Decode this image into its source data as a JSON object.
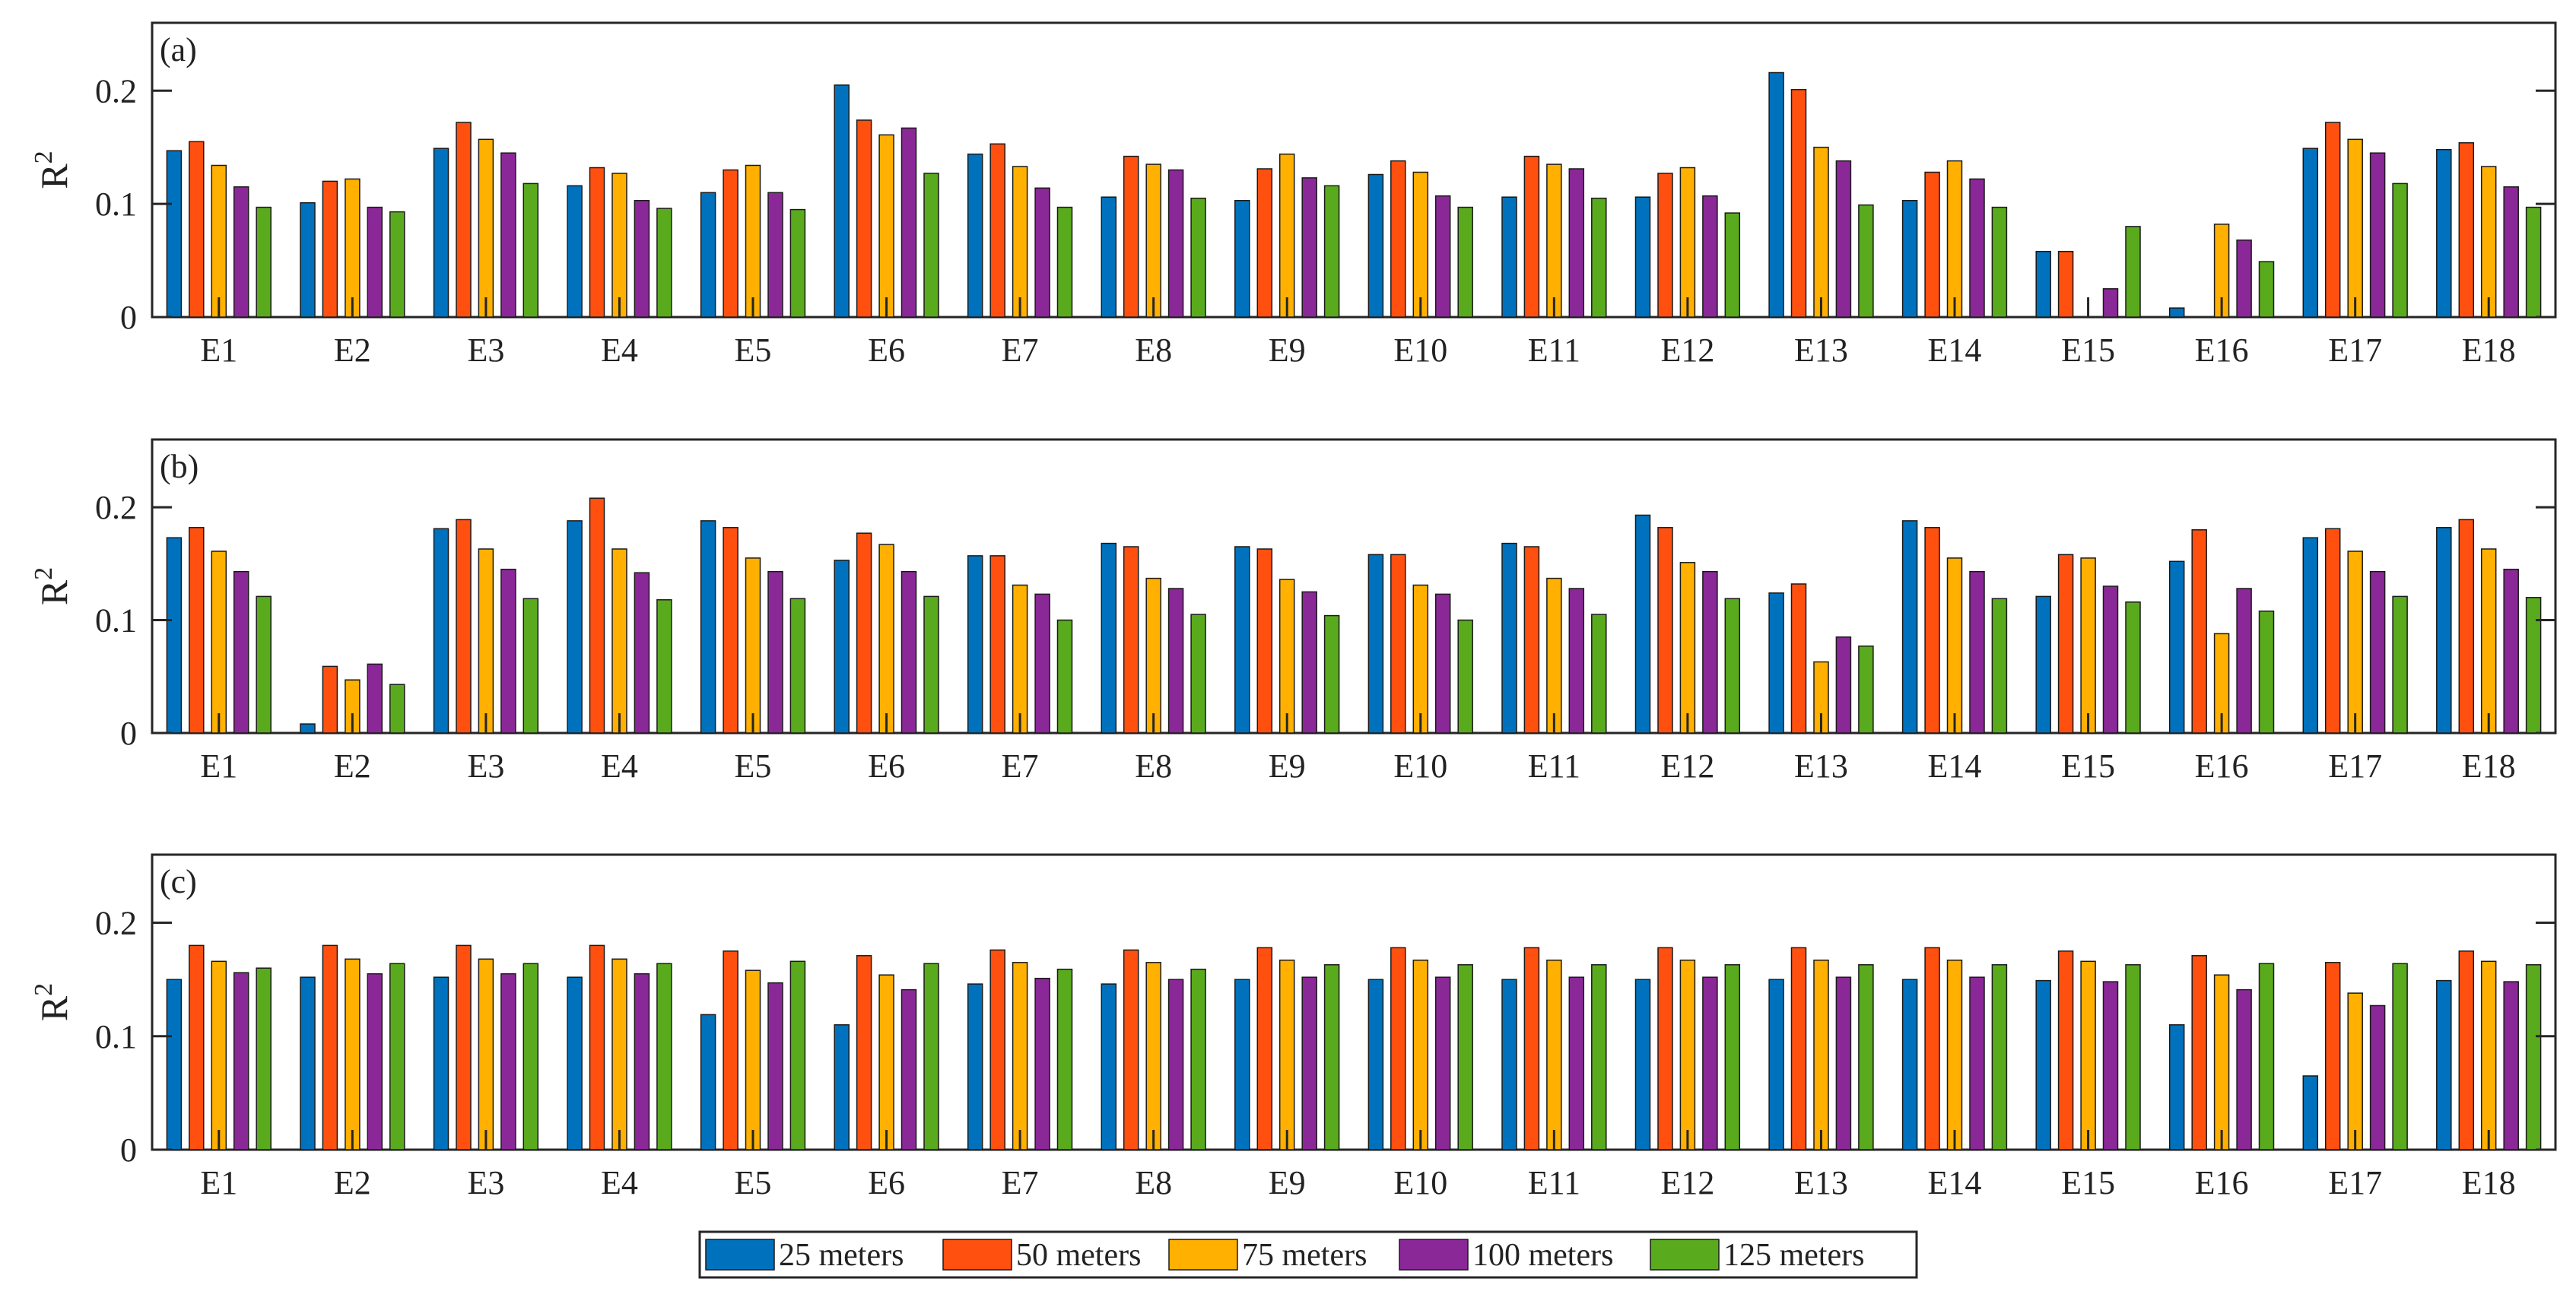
{
  "chart_data": [
    {
      "type": "bar",
      "panel_label": "(a)",
      "ylabel": "R",
      "ylabel_sup": "2",
      "ylim": [
        0,
        0.26
      ],
      "yticks": [
        0,
        0.1,
        0.2
      ],
      "ytick_labels": [
        "0",
        "0.1",
        "0.2"
      ],
      "categories": [
        "E1",
        "E2",
        "E3",
        "E4",
        "E5",
        "E6",
        "E7",
        "E8",
        "E9",
        "E10",
        "E11",
        "E12",
        "E13",
        "E14",
        "E15",
        "E16",
        "E17",
        "E18"
      ],
      "series": [
        {
          "name": "25 meters",
          "values": [
            0.147,
            0.101,
            0.149,
            0.116,
            0.11,
            0.205,
            0.144,
            0.106,
            0.103,
            0.126,
            0.106,
            0.106,
            0.216,
            0.103,
            0.058,
            0.008,
            0.149,
            0.148
          ]
        },
        {
          "name": "50 meters",
          "values": [
            0.155,
            0.12,
            0.172,
            0.132,
            0.13,
            0.174,
            0.153,
            0.142,
            0.131,
            0.138,
            0.142,
            0.127,
            0.201,
            0.128,
            0.058,
            0.0,
            0.172,
            0.154
          ]
        },
        {
          "name": "75 meters",
          "values": [
            0.134,
            0.122,
            0.157,
            0.127,
            0.134,
            0.161,
            0.133,
            0.135,
            0.144,
            0.128,
            0.135,
            0.132,
            0.15,
            0.138,
            0.0,
            0.082,
            0.157,
            0.133
          ]
        },
        {
          "name": "100 meters",
          "values": [
            0.115,
            0.097,
            0.145,
            0.103,
            0.11,
            0.167,
            0.114,
            0.13,
            0.123,
            0.107,
            0.131,
            0.107,
            0.138,
            0.122,
            0.025,
            0.068,
            0.145,
            0.115
          ]
        },
        {
          "name": "125 meters",
          "values": [
            0.097,
            0.093,
            0.118,
            0.096,
            0.095,
            0.127,
            0.097,
            0.105,
            0.116,
            0.097,
            0.105,
            0.092,
            0.099,
            0.097,
            0.08,
            0.049,
            0.118,
            0.097
          ]
        }
      ]
    },
    {
      "type": "bar",
      "panel_label": "(b)",
      "ylabel": "R",
      "ylabel_sup": "2",
      "ylim": [
        0,
        0.26
      ],
      "yticks": [
        0,
        0.1,
        0.2
      ],
      "ytick_labels": [
        "0",
        "0.1",
        "0.2"
      ],
      "categories": [
        "E1",
        "E2",
        "E3",
        "E4",
        "E5",
        "E6",
        "E7",
        "E8",
        "E9",
        "E10",
        "E11",
        "E12",
        "E13",
        "E14",
        "E15",
        "E16",
        "E17",
        "E18"
      ],
      "series": [
        {
          "name": "25 meters",
          "values": [
            0.173,
            0.008,
            0.181,
            0.188,
            0.188,
            0.153,
            0.157,
            0.168,
            0.165,
            0.158,
            0.168,
            0.193,
            0.124,
            0.188,
            0.121,
            0.152,
            0.173,
            0.182
          ]
        },
        {
          "name": "50 meters",
          "values": [
            0.182,
            0.059,
            0.189,
            0.208,
            0.182,
            0.177,
            0.157,
            0.165,
            0.163,
            0.158,
            0.165,
            0.182,
            0.132,
            0.182,
            0.158,
            0.18,
            0.181,
            0.189
          ]
        },
        {
          "name": "75 meters",
          "values": [
            0.161,
            0.047,
            0.163,
            0.163,
            0.155,
            0.167,
            0.131,
            0.137,
            0.136,
            0.131,
            0.137,
            0.151,
            0.063,
            0.155,
            0.155,
            0.088,
            0.161,
            0.163
          ]
        },
        {
          "name": "100 meters",
          "values": [
            0.143,
            0.061,
            0.145,
            0.142,
            0.143,
            0.143,
            0.123,
            0.128,
            0.125,
            0.123,
            0.128,
            0.143,
            0.085,
            0.143,
            0.13,
            0.128,
            0.143,
            0.145
          ]
        },
        {
          "name": "125 meters",
          "values": [
            0.121,
            0.043,
            0.119,
            0.118,
            0.119,
            0.121,
            0.1,
            0.105,
            0.104,
            0.1,
            0.105,
            0.119,
            0.077,
            0.119,
            0.116,
            0.108,
            0.121,
            0.12
          ]
        }
      ]
    },
    {
      "type": "bar",
      "panel_label": "(c)",
      "ylabel": "R",
      "ylabel_sup": "2",
      "ylim": [
        0,
        0.26
      ],
      "yticks": [
        0,
        0.1,
        0.2
      ],
      "ytick_labels": [
        "0",
        "0.1",
        "0.2"
      ],
      "categories": [
        "E1",
        "E2",
        "E3",
        "E4",
        "E5",
        "E6",
        "E7",
        "E8",
        "E9",
        "E10",
        "E11",
        "E12",
        "E13",
        "E14",
        "E15",
        "E16",
        "E17",
        "E18"
      ],
      "series": [
        {
          "name": "25 meters",
          "values": [
            0.15,
            0.152,
            0.152,
            0.152,
            0.119,
            0.11,
            0.146,
            0.146,
            0.15,
            0.15,
            0.15,
            0.15,
            0.15,
            0.15,
            0.149,
            0.11,
            0.065,
            0.149
          ]
        },
        {
          "name": "50 meters",
          "values": [
            0.18,
            0.18,
            0.18,
            0.18,
            0.175,
            0.171,
            0.176,
            0.176,
            0.178,
            0.178,
            0.178,
            0.178,
            0.178,
            0.178,
            0.175,
            0.171,
            0.165,
            0.175
          ]
        },
        {
          "name": "75 meters",
          "values": [
            0.166,
            0.168,
            0.168,
            0.168,
            0.158,
            0.154,
            0.165,
            0.165,
            0.167,
            0.167,
            0.167,
            0.167,
            0.167,
            0.167,
            0.166,
            0.154,
            0.138,
            0.166
          ]
        },
        {
          "name": "100 meters",
          "values": [
            0.156,
            0.155,
            0.155,
            0.155,
            0.147,
            0.141,
            0.151,
            0.15,
            0.152,
            0.152,
            0.152,
            0.152,
            0.152,
            0.152,
            0.148,
            0.141,
            0.127,
            0.148
          ]
        },
        {
          "name": "125 meters",
          "values": [
            0.16,
            0.164,
            0.164,
            0.164,
            0.166,
            0.164,
            0.159,
            0.159,
            0.163,
            0.163,
            0.163,
            0.163,
            0.163,
            0.163,
            0.163,
            0.164,
            0.164,
            0.163
          ]
        }
      ]
    }
  ],
  "legend": {
    "placement": "bottom-center",
    "entries": [
      {
        "label": "25 meters",
        "color": "#0072BD"
      },
      {
        "label": "50 meters",
        "color": "#FF5010"
      },
      {
        "label": "75 meters",
        "color": "#FFB000"
      },
      {
        "label": "100 meters",
        "color": "#8B2898"
      },
      {
        "label": "125 meters",
        "color": "#5AAA1E"
      }
    ]
  }
}
